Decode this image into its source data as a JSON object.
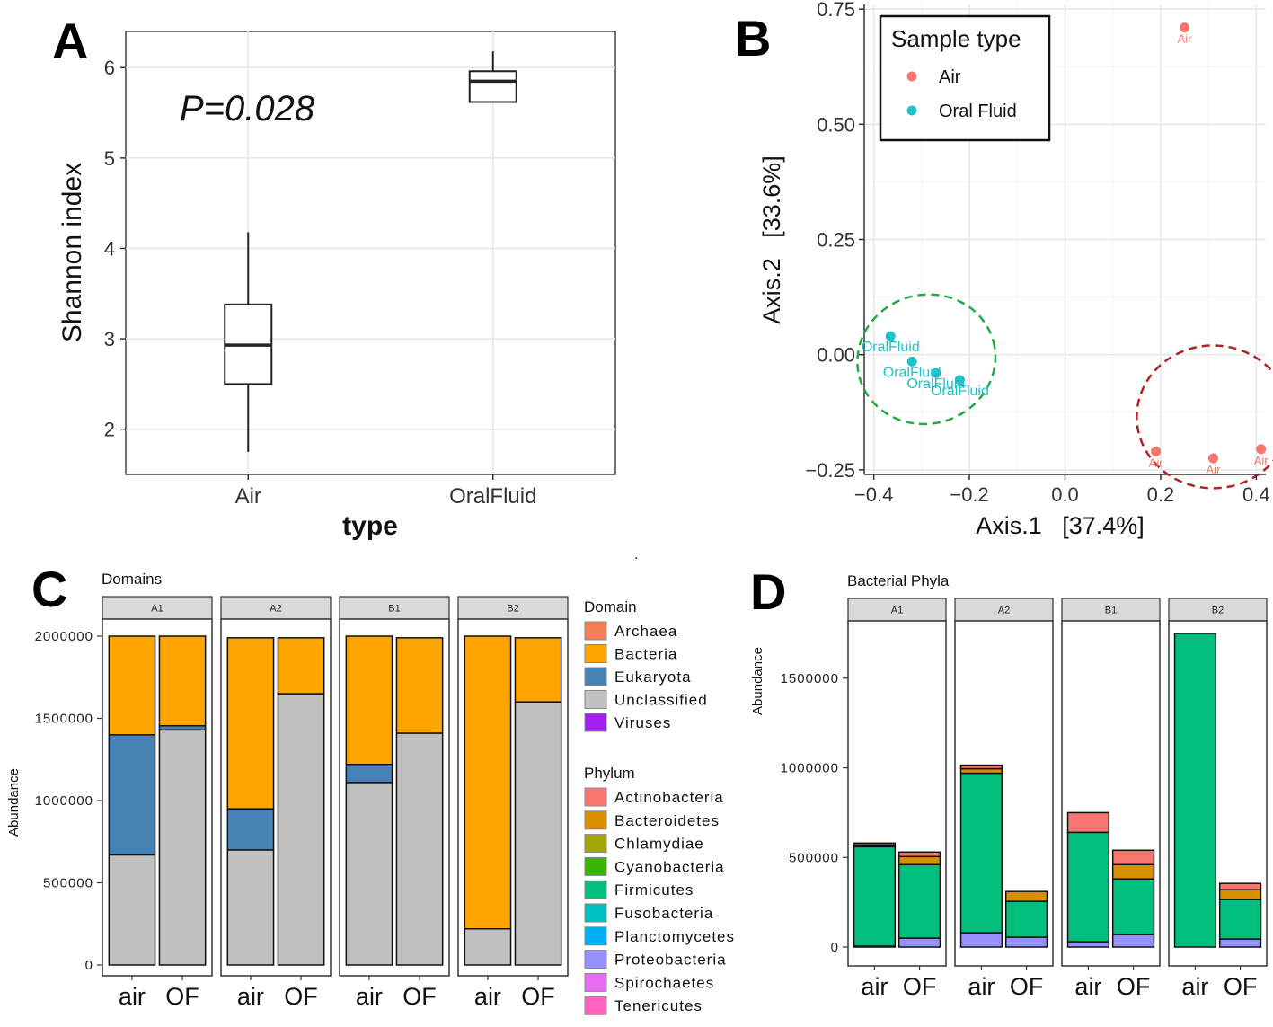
{
  "colors": {
    "box_stroke": "#222222",
    "grid": "#e6e6e6",
    "air": "#f8766d",
    "oral": "#1ec3c8",
    "ellipse_green": "#22aa44",
    "ellipse_red": "#b22222",
    "panel_border": "#333333",
    "strip_fill": "#d9d9d9",
    "Archaea": "#f47f56",
    "Bacteria": "#ffa500",
    "Eukaryota": "#4682b4",
    "Unclassified": "#c0c0c0",
    "Viruses": "#a020f0",
    "Actinobacteria": "#f8766d",
    "Bacteroidetes": "#d89000",
    "Chlamydiae": "#a3a500",
    "Cyanobacteria": "#39b600",
    "Firmicutes": "#00bf7d",
    "Fusobacteria": "#00bfc4",
    "Planctomycetes": "#00b0f6",
    "Proteobacteria": "#9590ff",
    "Spirochaetes": "#e76bf3",
    "Tenericutes": "#ff62bc"
  },
  "chart_data": [
    {
      "panel": "A",
      "type": "box",
      "annotation": "P=0.028",
      "xlabel": "type",
      "ylabel": "Shannon index",
      "ylim": [
        1.5,
        6.4
      ],
      "yticks": [
        "2",
        "3",
        "4",
        "5",
        "6"
      ],
      "categories": [
        "Air",
        "OralFluid"
      ],
      "boxes": [
        {
          "name": "Air",
          "whisker_low": 1.75,
          "q1": 2.5,
          "median": 2.93,
          "q3": 3.38,
          "whisker_high": 4.18
        },
        {
          "name": "OralFluid",
          "whisker_low": 5.62,
          "q1": 5.62,
          "median": 5.85,
          "q3": 5.96,
          "whisker_high": 6.18
        }
      ]
    },
    {
      "panel": "B",
      "type": "scatter",
      "xlabel": "Axis.1   [37.4%]",
      "ylabel": "Axis.2   [33.6%]",
      "xlim": [
        -0.42,
        0.42
      ],
      "ylim": [
        -0.26,
        0.76
      ],
      "xticks": [
        "−0.4",
        "−0.2",
        "0.0",
        "0.2",
        "0.4"
      ],
      "yticks": [
        "−0.25",
        "0.00",
        "0.25",
        "0.50",
        "0.75"
      ],
      "legend_title": "Sample type",
      "legend": [
        "Air",
        "Oral Fluid"
      ],
      "series": [
        {
          "name": "Air",
          "label": "Air",
          "x": [
            0.25,
            0.19,
            0.31,
            0.41
          ],
          "y": [
            0.71,
            -0.21,
            -0.225,
            -0.205
          ]
        },
        {
          "name": "Oral Fluid",
          "label": "OralFluid",
          "x": [
            -0.365,
            -0.32,
            -0.27,
            -0.22
          ],
          "y": [
            0.04,
            -0.015,
            -0.04,
            -0.055
          ]
        }
      ],
      "ellipses": [
        {
          "group": "Oral Fluid",
          "cx": -0.29,
          "cy": -0.01,
          "rx": 0.145,
          "ry": 0.14,
          "rotate": -15
        },
        {
          "group": "Air",
          "cx": 0.31,
          "cy": -0.135,
          "rx": 0.16,
          "ry": 0.155,
          "rotate": 0
        }
      ]
    },
    {
      "panel": "C",
      "type": "stacked bar",
      "title": "Domains",
      "ylabel": "Abundance",
      "ylim": [
        0,
        2000000
      ],
      "yticks": [
        0,
        500000,
        1000000,
        1500000,
        2000000
      ],
      "ytick_labels": [
        "0",
        "500000",
        "1000000",
        "1500000",
        "2000000"
      ],
      "facets": [
        "A1",
        "A2",
        "B1",
        "B2"
      ],
      "categories": [
        "air",
        "OF"
      ],
      "legend_title": "Domain",
      "legend": [
        "Archaea",
        "Bacteria",
        "Eukaryota",
        "Unclassified",
        "Viruses"
      ],
      "bars": [
        {
          "facet": "A1",
          "x": "air",
          "Unclassified": 670000,
          "Eukaryota": 730000,
          "Bacteria": 600000
        },
        {
          "facet": "A1",
          "x": "OF",
          "Unclassified": 1430000,
          "Eukaryota": 25000,
          "Bacteria": 545000
        },
        {
          "facet": "A2",
          "x": "air",
          "Unclassified": 700000,
          "Eukaryota": 250000,
          "Bacteria": 1040000
        },
        {
          "facet": "A2",
          "x": "OF",
          "Unclassified": 1650000,
          "Bacteria": 340000
        },
        {
          "facet": "B1",
          "x": "air",
          "Unclassified": 1110000,
          "Eukaryota": 110000,
          "Bacteria": 780000
        },
        {
          "facet": "B1",
          "x": "OF",
          "Unclassified": 1410000,
          "Bacteria": 580000
        },
        {
          "facet": "B2",
          "x": "air",
          "Unclassified": 220000,
          "Bacteria": 1780000
        },
        {
          "facet": "B2",
          "x": "OF",
          "Unclassified": 1600000,
          "Bacteria": 390000
        }
      ]
    },
    {
      "panel": "D",
      "type": "stacked bar",
      "title": "Bacterial Phyla",
      "ylabel": "Abundance",
      "ylim": [
        -20000,
        1820000
      ],
      "yticks": [
        0,
        500000,
        1000000,
        1500000
      ],
      "ytick_labels": [
        "0",
        "500000",
        "1000000",
        "1500000"
      ],
      "facets": [
        "A1",
        "A2",
        "B1",
        "B2"
      ],
      "categories": [
        "air",
        "OF"
      ],
      "legend_title": "Phylum",
      "legend": [
        "Actinobacteria",
        "Bacteroidetes",
        "Chlamydiae",
        "Cyanobacteria",
        "Firmicutes",
        "Fusobacteria",
        "Planctomycetes",
        "Proteobacteria",
        "Spirochaetes",
        "Tenericutes"
      ],
      "bars": [
        {
          "facet": "A1",
          "x": "air",
          "Proteobacteria": 5000,
          "Firmicutes": 555000,
          "Bacteroidetes": 10000,
          "Actinobacteria": 10000
        },
        {
          "facet": "A1",
          "x": "OF",
          "Proteobacteria": 50000,
          "Firmicutes": 410000,
          "Bacteroidetes": 45000,
          "Actinobacteria": 25000
        },
        {
          "facet": "A2",
          "x": "air",
          "Proteobacteria": 80000,
          "Firmicutes": 890000,
          "Bacteroidetes": 25000,
          "Actinobacteria": 20000
        },
        {
          "facet": "A2",
          "x": "OF",
          "Proteobacteria": 55000,
          "Firmicutes": 200000,
          "Bacteroidetes": 55000
        },
        {
          "facet": "B1",
          "x": "air",
          "Proteobacteria": 30000,
          "Firmicutes": 610000,
          "Actinobacteria": 110000
        },
        {
          "facet": "B1",
          "x": "OF",
          "Proteobacteria": 70000,
          "Firmicutes": 310000,
          "Bacteroidetes": 80000,
          "Actinobacteria": 80000
        },
        {
          "facet": "B2",
          "x": "air",
          "Firmicutes": 1750000
        },
        {
          "facet": "B2",
          "x": "OF",
          "Proteobacteria": 45000,
          "Firmicutes": 220000,
          "Bacteroidetes": 55000,
          "Actinobacteria": 35000
        }
      ]
    }
  ],
  "panel_labels": [
    "A",
    "B",
    "C",
    "D"
  ]
}
